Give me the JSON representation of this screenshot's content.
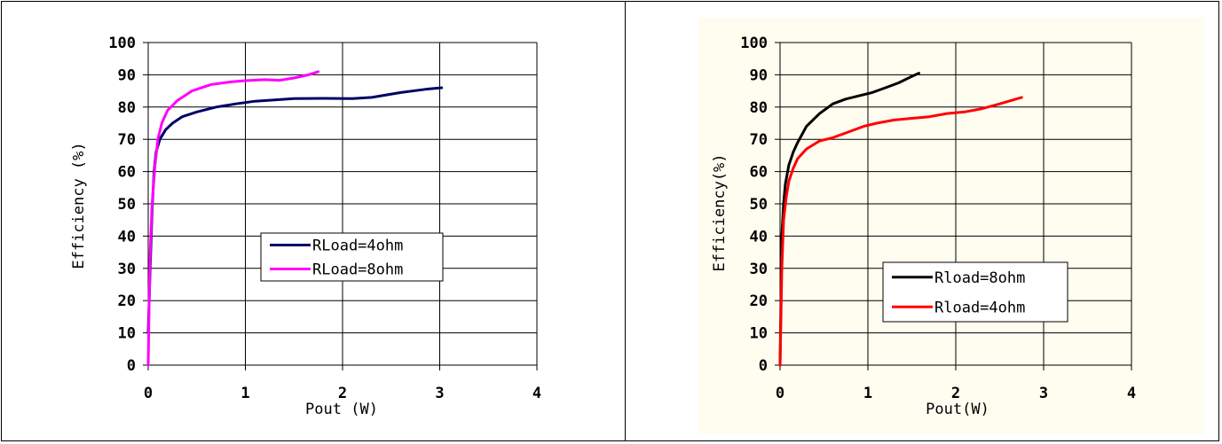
{
  "chart_data": [
    {
      "type": "line",
      "title": "",
      "xlabel": "Pout (W)",
      "ylabel": "Efficiency (%)",
      "xlim": [
        0,
        4
      ],
      "ylim": [
        0,
        100
      ],
      "x_ticks": [
        "0",
        "1",
        "2",
        "3",
        "4"
      ],
      "y_ticks": [
        "0",
        "10",
        "20",
        "30",
        "40",
        "50",
        "60",
        "70",
        "80",
        "90",
        "100"
      ],
      "grid": true,
      "legend_position": "center-right",
      "background": "#ffffff",
      "series": [
        {
          "name": "RLoad=4ohm",
          "color": "#000066",
          "points": [
            [
              0.0,
              10
            ],
            [
              0.02,
              30
            ],
            [
              0.04,
              48
            ],
            [
              0.06,
              60
            ],
            [
              0.08,
              66
            ],
            [
              0.12,
              70
            ],
            [
              0.18,
              73
            ],
            [
              0.25,
              75
            ],
            [
              0.35,
              77
            ],
            [
              0.5,
              78.5
            ],
            [
              0.7,
              80
            ],
            [
              0.9,
              81
            ],
            [
              1.1,
              81.8
            ],
            [
              1.3,
              82.2
            ],
            [
              1.5,
              82.6
            ],
            [
              1.8,
              82.7
            ],
            [
              2.1,
              82.6
            ],
            [
              2.3,
              83
            ],
            [
              2.6,
              84.5
            ],
            [
              2.85,
              85.5
            ],
            [
              3.02,
              86
            ]
          ]
        },
        {
          "name": "RLoad=8ohm",
          "color": "#ff00ff",
          "points": [
            [
              0.0,
              0
            ],
            [
              0.01,
              20
            ],
            [
              0.02,
              35
            ],
            [
              0.04,
              50
            ],
            [
              0.07,
              62
            ],
            [
              0.1,
              70
            ],
            [
              0.14,
              75
            ],
            [
              0.2,
              79
            ],
            [
              0.3,
              82
            ],
            [
              0.45,
              85
            ],
            [
              0.65,
              87
            ],
            [
              0.85,
              87.8
            ],
            [
              1.0,
              88.2
            ],
            [
              1.2,
              88.5
            ],
            [
              1.35,
              88.3
            ],
            [
              1.5,
              89
            ],
            [
              1.65,
              90
            ],
            [
              1.75,
              91
            ]
          ]
        }
      ]
    },
    {
      "type": "line",
      "title": "",
      "xlabel": "Pout(W)",
      "ylabel": "Efficiency(%)",
      "xlim": [
        0,
        4
      ],
      "ylim": [
        0,
        100
      ],
      "x_ticks": [
        "0",
        "1",
        "2",
        "3",
        "4"
      ],
      "y_ticks": [
        "0",
        "10",
        "20",
        "30",
        "40",
        "50",
        "60",
        "70",
        "80",
        "90",
        "100"
      ],
      "grid": true,
      "legend_position": "center-right",
      "background": "#fffcf0",
      "series": [
        {
          "name": "Rload=8ohm",
          "color": "#000000",
          "points": [
            [
              0.0,
              0
            ],
            [
              0.01,
              20
            ],
            [
              0.02,
              40
            ],
            [
              0.04,
              50
            ],
            [
              0.06,
              56
            ],
            [
              0.1,
              62
            ],
            [
              0.15,
              66
            ],
            [
              0.2,
              69
            ],
            [
              0.3,
              74
            ],
            [
              0.45,
              78
            ],
            [
              0.6,
              81
            ],
            [
              0.75,
              82.5
            ],
            [
              0.9,
              83.5
            ],
            [
              1.05,
              84.5
            ],
            [
              1.2,
              86
            ],
            [
              1.35,
              87.5
            ],
            [
              1.5,
              89.5
            ],
            [
              1.58,
              90.5
            ]
          ]
        },
        {
          "name": "Rload=4ohm",
          "color": "#ff0000",
          "points": [
            [
              0.0,
              0
            ],
            [
              0.01,
              15
            ],
            [
              0.02,
              30
            ],
            [
              0.04,
              45
            ],
            [
              0.07,
              52
            ],
            [
              0.1,
              57
            ],
            [
              0.15,
              61
            ],
            [
              0.2,
              64
            ],
            [
              0.3,
              67
            ],
            [
              0.45,
              69.5
            ],
            [
              0.6,
              70.5
            ],
            [
              0.8,
              72.5
            ],
            [
              0.95,
              74
            ],
            [
              1.1,
              75
            ],
            [
              1.3,
              76
            ],
            [
              1.5,
              76.5
            ],
            [
              1.7,
              77
            ],
            [
              1.9,
              78
            ],
            [
              2.1,
              78.5
            ],
            [
              2.3,
              79.5
            ],
            [
              2.5,
              81
            ],
            [
              2.75,
              83
            ]
          ]
        }
      ]
    }
  ]
}
